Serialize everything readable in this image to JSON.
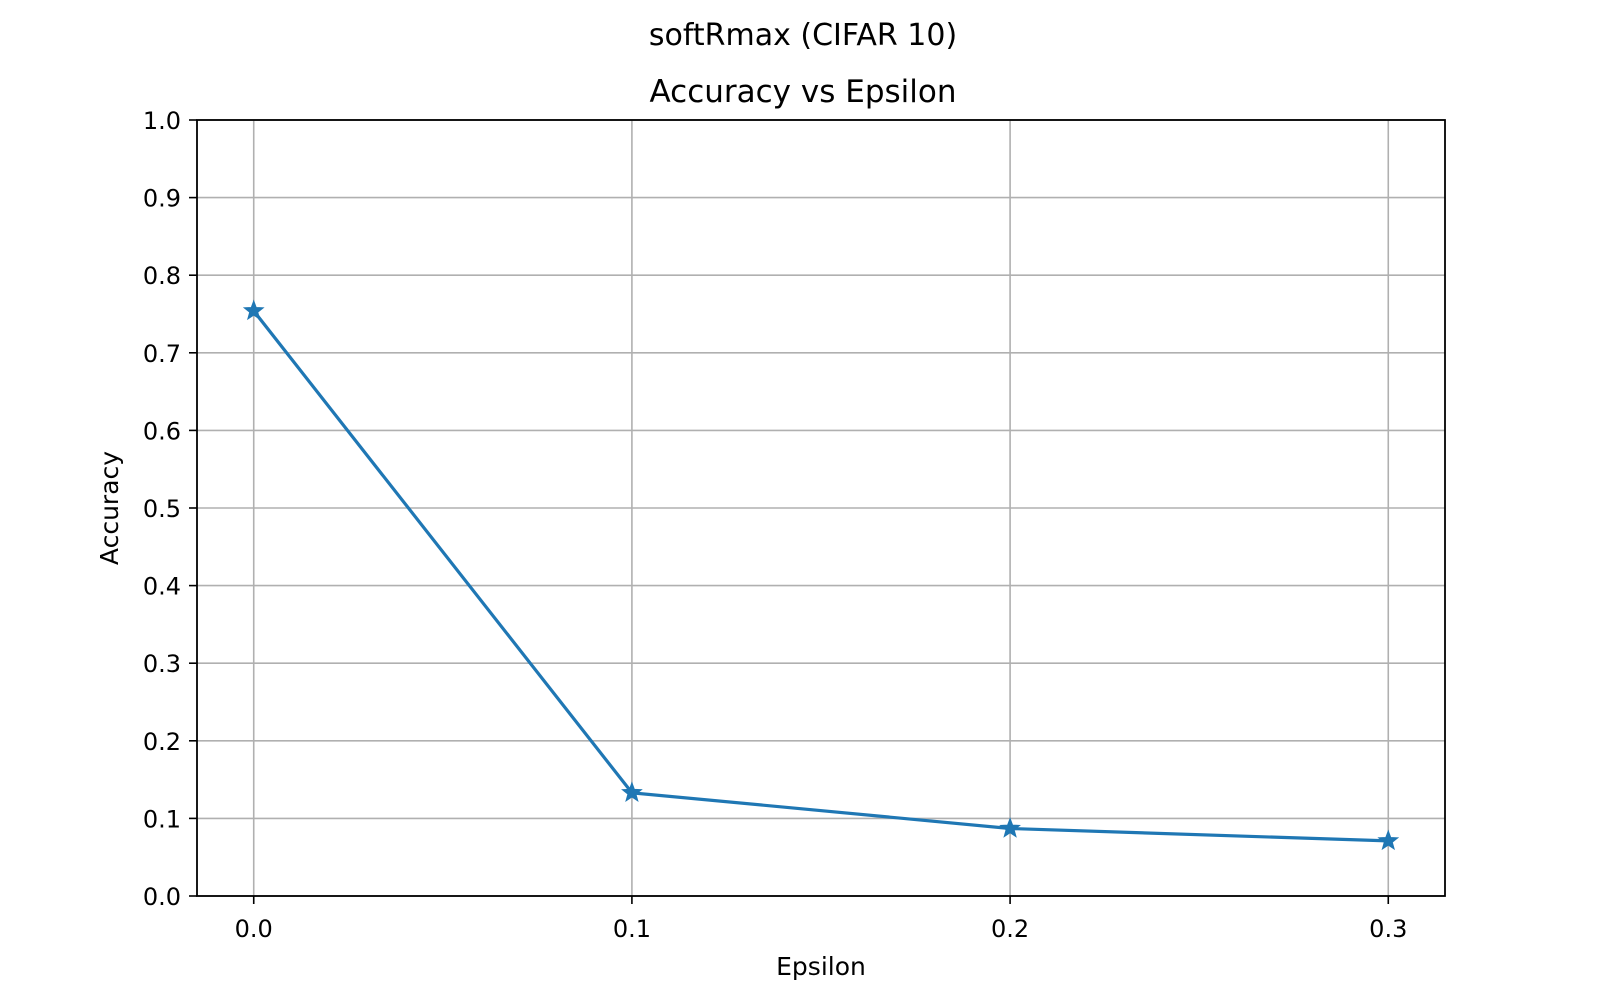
{
  "chart_data": {
    "type": "line",
    "suptitle": "softRmax (CIFAR 10)",
    "title": "Accuracy vs Epsilon",
    "xlabel": "Epsilon",
    "ylabel": "Accuracy",
    "xlim": [
      -0.015,
      0.315
    ],
    "ylim": [
      0.0,
      1.0
    ],
    "xticks": [
      0.0,
      0.1,
      0.2,
      0.3
    ],
    "xtick_labels": [
      "0.0",
      "0.1",
      "0.2",
      "0.3"
    ],
    "yticks": [
      0.0,
      0.1,
      0.2,
      0.3,
      0.4,
      0.5,
      0.6,
      0.7,
      0.8,
      0.9,
      1.0
    ],
    "ytick_labels": [
      "0.0",
      "0.1",
      "0.2",
      "0.3",
      "0.4",
      "0.5",
      "0.6",
      "0.7",
      "0.8",
      "0.9",
      "1.0"
    ],
    "grid": true,
    "legend": "none",
    "series": [
      {
        "marker": "star",
        "color": "#1f77b4",
        "x": [
          0.0,
          0.1,
          0.2,
          0.3
        ],
        "y": [
          0.754,
          0.133,
          0.087,
          0.071
        ]
      }
    ]
  }
}
